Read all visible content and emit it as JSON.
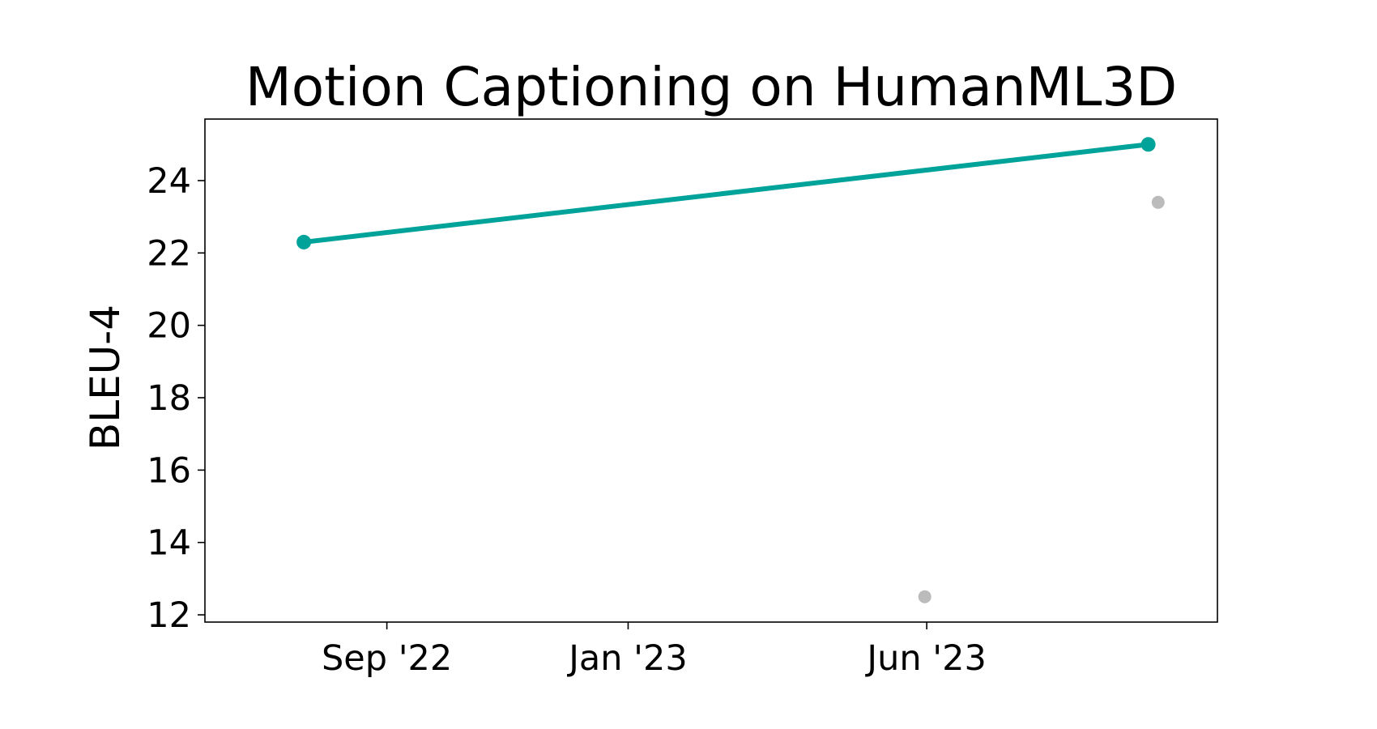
{
  "chart_data": {
    "type": "line",
    "title": "Motion Captioning on HumanML3D",
    "xlabel": "",
    "ylabel": "BLEU-4",
    "x_axis_type": "date",
    "xlim": [
      "2022-06-01",
      "2023-10-26"
    ],
    "ylim": [
      11.8,
      25.7
    ],
    "x_ticks": [
      {
        "date": "2022-09-01",
        "label": "Sep '22"
      },
      {
        "date": "2023-01-01",
        "label": "Jan '23"
      },
      {
        "date": "2023-06-01",
        "label": "Jun '23"
      }
    ],
    "y_ticks": [
      {
        "value": 12,
        "label": "12"
      },
      {
        "value": 14,
        "label": "14"
      },
      {
        "value": 16,
        "label": "16"
      },
      {
        "value": 18,
        "label": "18"
      },
      {
        "value": 20,
        "label": "20"
      },
      {
        "value": 22,
        "label": "22"
      },
      {
        "value": 24,
        "label": "24"
      }
    ],
    "grid": false,
    "legend": false,
    "series": [
      {
        "role": "state-of-the-art",
        "color": "#00a399",
        "style": "line-with-markers",
        "points": [
          {
            "date": "2022-07-21",
            "value": 22.3
          },
          {
            "date": "2023-09-21",
            "value": 25.0
          }
        ]
      },
      {
        "role": "other-results",
        "color": "#bbbbbb",
        "style": "markers-only",
        "points": [
          {
            "date": "2023-05-31",
            "value": 12.5
          },
          {
            "date": "2023-09-26",
            "value": 23.4
          }
        ]
      }
    ]
  }
}
